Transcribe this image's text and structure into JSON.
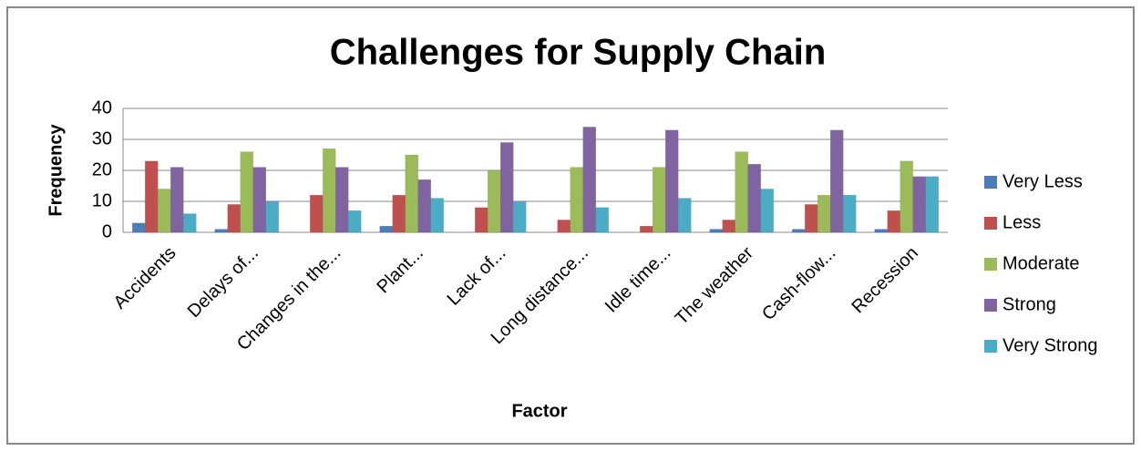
{
  "chart_data": {
    "type": "bar",
    "title": "Challenges for Supply Chain",
    "x_label": "Factor",
    "y_label": "Frequency",
    "categories": [
      "Accidents",
      "Delays of...",
      "Changes in the...",
      "Plant...",
      "Lack of...",
      "Long distance...",
      "Idle time...",
      "The weather",
      "Cash-flow...",
      "Recession"
    ],
    "series": [
      {
        "name": "Very Less",
        "color": "#4a7ebb",
        "values": [
          3,
          1,
          0,
          2,
          0,
          0,
          0,
          1,
          1,
          1
        ]
      },
      {
        "name": "Less",
        "color": "#c0504d",
        "values": [
          23,
          9,
          12,
          12,
          8,
          4,
          2,
          4,
          9,
          7
        ]
      },
      {
        "name": "Moderate",
        "color": "#9bbb59",
        "values": [
          14,
          26,
          27,
          25,
          20,
          21,
          21,
          26,
          12,
          23
        ]
      },
      {
        "name": "Strong",
        "color": "#8064a2",
        "values": [
          21,
          21,
          21,
          17,
          29,
          34,
          33,
          22,
          33,
          18
        ]
      },
      {
        "name": "Very Strong",
        "color": "#4bacc6",
        "values": [
          6,
          10,
          7,
          11,
          10,
          8,
          11,
          14,
          12,
          18
        ]
      }
    ],
    "ylim": [
      0,
      40
    ],
    "yticks": [
      0,
      10,
      20,
      30,
      40
    ],
    "grid": true,
    "legend": "right"
  }
}
